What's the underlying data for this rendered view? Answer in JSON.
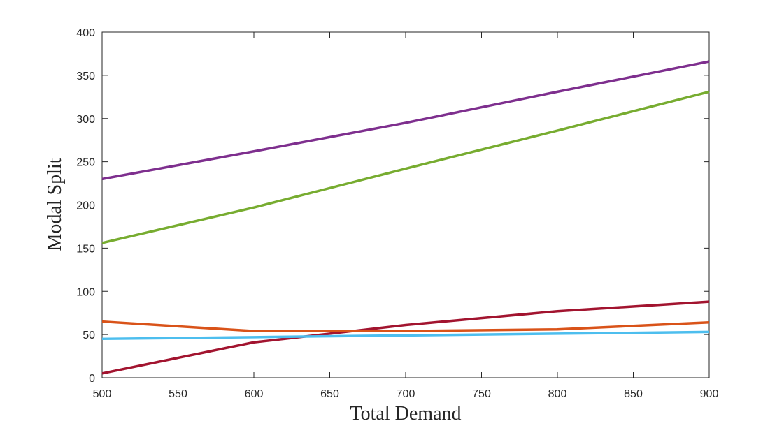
{
  "chart_data": {
    "type": "line",
    "title": "",
    "xlabel": "Total Demand",
    "ylabel": "Modal Split",
    "xlim": [
      500,
      900
    ],
    "ylim": [
      0,
      400
    ],
    "xticks": [
      500,
      550,
      600,
      650,
      700,
      750,
      800,
      850,
      900
    ],
    "yticks": [
      0,
      50,
      100,
      150,
      200,
      250,
      300,
      350,
      400
    ],
    "grid": false,
    "legend": "none",
    "x": [
      500,
      600,
      700,
      800,
      900
    ],
    "series": [
      {
        "color": "#7E2F8E",
        "values": [
          230,
          262,
          295,
          331,
          366
        ]
      },
      {
        "color": "#77AC30",
        "values": [
          156,
          197,
          242,
          286,
          331
        ]
      },
      {
        "color": "#A2142F",
        "values": [
          5,
          41,
          61,
          77,
          88
        ]
      },
      {
        "color": "#D95319",
        "values": [
          65,
          54,
          54,
          56,
          64
        ]
      },
      {
        "color": "#4DBEEE",
        "values": [
          45,
          47,
          49,
          51,
          53
        ]
      }
    ]
  }
}
